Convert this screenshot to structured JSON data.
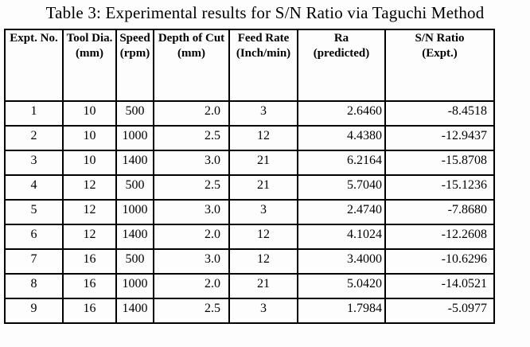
{
  "title": "Table 3: Experimental results for S/N Ratio via Taguchi Method",
  "colors": {
    "text": "#000000",
    "border": "#000000",
    "background": "#fdfdfd"
  },
  "table": {
    "columns": [
      {
        "id": "expt-no",
        "label": "Expt. No.",
        "unit": ""
      },
      {
        "id": "tool-dia",
        "label": "Tool Dia.",
        "unit": "(mm)"
      },
      {
        "id": "speed",
        "label": "Speed",
        "unit": "(rpm)"
      },
      {
        "id": "depth-of-cut",
        "label": "Depth of Cut",
        "unit": "(mm)"
      },
      {
        "id": "feed-rate",
        "label": "Feed Rate",
        "unit": "(Inch/min)"
      },
      {
        "id": "ra-predicted",
        "label": "Ra",
        "unit": "(predicted)"
      },
      {
        "id": "sn-ratio",
        "label": "S/N Ratio",
        "unit": "(Expt.)"
      }
    ],
    "rows": [
      [
        "1",
        "10",
        "500",
        "2.0",
        "3",
        "2.6460",
        "-8.4518"
      ],
      [
        "2",
        "10",
        "1000",
        "2.5",
        "12",
        "4.4380",
        "-12.9437"
      ],
      [
        "3",
        "10",
        "1400",
        "3.0",
        "21",
        "6.2164",
        "-15.8708"
      ],
      [
        "4",
        "12",
        "500",
        "2.5",
        "21",
        "5.7040",
        "-15.1236"
      ],
      [
        "5",
        "12",
        "1000",
        "3.0",
        "3",
        "2.4740",
        "-7.8680"
      ],
      [
        "6",
        "12",
        "1400",
        "2.0",
        "12",
        "4.1024",
        "-12.2608"
      ],
      [
        "7",
        "16",
        "500",
        "3.0",
        "12",
        "3.4000",
        "-10.6296"
      ],
      [
        "8",
        "16",
        "1000",
        "2.0",
        "21",
        "5.0420",
        "-14.0521"
      ],
      [
        "9",
        "16",
        "1400",
        "2.5",
        "3",
        "1.7984",
        "-5.0977"
      ]
    ]
  }
}
